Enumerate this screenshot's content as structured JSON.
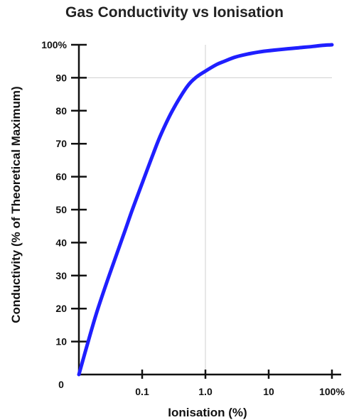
{
  "chart_data": {
    "type": "line",
    "title": "Gas Conductivity vs Ionisation",
    "xlabel": "Ionisation (%)",
    "ylabel": "Conductivity (% of Theoretical Maximum)",
    "x_scale": "log",
    "xlim": [
      0.01,
      100
    ],
    "ylim": [
      0,
      100
    ],
    "x_ticks": [
      {
        "value": 0.1,
        "label": "0.1"
      },
      {
        "value": 1,
        "label": "1.0"
      },
      {
        "value": 10,
        "label": "10"
      },
      {
        "value": 100,
        "label": "100%"
      }
    ],
    "y_ticks": [
      {
        "value": 10,
        "label": "10"
      },
      {
        "value": 20,
        "label": "20"
      },
      {
        "value": 30,
        "label": "30"
      },
      {
        "value": 40,
        "label": "40"
      },
      {
        "value": 50,
        "label": "50"
      },
      {
        "value": 60,
        "label": "60"
      },
      {
        "value": 70,
        "label": "70"
      },
      {
        "value": 80,
        "label": "80"
      },
      {
        "value": 90,
        "label": "90"
      },
      {
        "value": 100,
        "label": "100%"
      }
    ],
    "origin_label": "0",
    "gridlines": [
      {
        "axis": "x",
        "value": 1
      },
      {
        "axis": "y",
        "value": 90
      }
    ],
    "series": [
      {
        "color": "#1f1fff",
        "points": [
          [
            0.01,
            0
          ],
          [
            0.015,
            12
          ],
          [
            0.02,
            20
          ],
          [
            0.03,
            30
          ],
          [
            0.05,
            42
          ],
          [
            0.07,
            50
          ],
          [
            0.1,
            58
          ],
          [
            0.15,
            67
          ],
          [
            0.2,
            73
          ],
          [
            0.3,
            80
          ],
          [
            0.5,
            87
          ],
          [
            0.7,
            90
          ],
          [
            1,
            92
          ],
          [
            1.5,
            94
          ],
          [
            2,
            95
          ],
          [
            3,
            96.3
          ],
          [
            5,
            97.3
          ],
          [
            7,
            97.8
          ],
          [
            10,
            98.2
          ],
          [
            20,
            98.8
          ],
          [
            30,
            99.1
          ],
          [
            50,
            99.5
          ],
          [
            70,
            99.8
          ],
          [
            100,
            100
          ]
        ]
      }
    ]
  }
}
